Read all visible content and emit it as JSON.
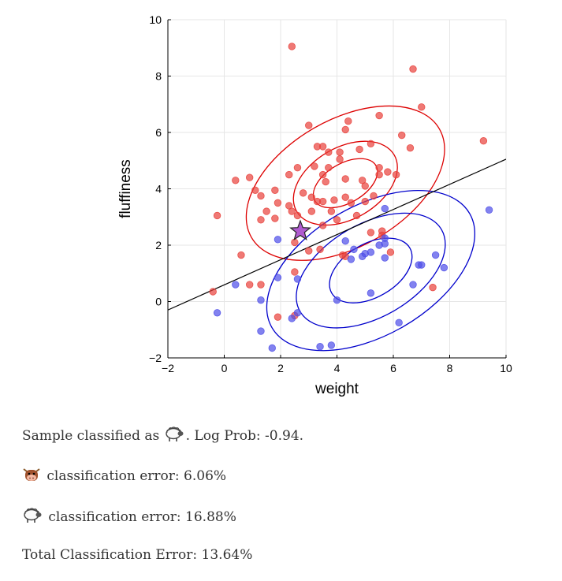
{
  "chart_data": {
    "type": "scatter",
    "title": "",
    "xlabel": "weight",
    "ylabel": "fluffiness",
    "xlim": [
      -2,
      10
    ],
    "ylim": [
      -2,
      10
    ],
    "xticks": [
      -2,
      0,
      2,
      4,
      6,
      8,
      10
    ],
    "yticks": [
      -2,
      0,
      2,
      4,
      6,
      8,
      10
    ],
    "grid": true,
    "colors": {
      "cow": "#e8403a",
      "sheep": "#4d4de8",
      "cow_ellipse": "#dd0000",
      "sheep_ellipse": "#0000cc",
      "boundary": "#000000",
      "sample": "#b05bd0"
    },
    "series": [
      {
        "class": "cow",
        "points": [
          [
            2.4,
            9.05
          ],
          [
            6.7,
            8.25
          ],
          [
            7.0,
            6.9
          ],
          [
            5.5,
            6.6
          ],
          [
            4.4,
            6.4
          ],
          [
            3.0,
            6.25
          ],
          [
            4.3,
            6.1
          ],
          [
            6.3,
            5.9
          ],
          [
            9.2,
            5.7
          ],
          [
            5.2,
            5.6
          ],
          [
            3.3,
            5.5
          ],
          [
            3.5,
            5.5
          ],
          [
            6.6,
            5.45
          ],
          [
            3.7,
            5.3
          ],
          [
            4.8,
            5.4
          ],
          [
            4.1,
            5.3
          ],
          [
            0.4,
            4.3
          ],
          [
            4.1,
            5.05
          ],
          [
            2.6,
            4.75
          ],
          [
            3.2,
            4.8
          ],
          [
            3.7,
            4.75
          ],
          [
            5.5,
            4.75
          ],
          [
            5.8,
            4.6
          ],
          [
            2.3,
            4.5
          ],
          [
            3.5,
            4.5
          ],
          [
            5.5,
            4.5
          ],
          [
            6.1,
            4.5
          ],
          [
            0.9,
            4.4
          ],
          [
            4.3,
            4.35
          ],
          [
            3.6,
            4.25
          ],
          [
            4.9,
            4.3
          ],
          [
            5.0,
            4.1
          ],
          [
            1.8,
            3.95
          ],
          [
            1.1,
            3.95
          ],
          [
            1.3,
            3.75
          ],
          [
            2.8,
            3.85
          ],
          [
            3.1,
            3.7
          ],
          [
            5.3,
            3.75
          ],
          [
            4.3,
            3.7
          ],
          [
            3.3,
            3.55
          ],
          [
            3.5,
            3.55
          ],
          [
            1.9,
            3.5
          ],
          [
            2.3,
            3.4
          ],
          [
            3.9,
            3.6
          ],
          [
            5.0,
            3.55
          ],
          [
            4.5,
            3.5
          ],
          [
            1.5,
            3.2
          ],
          [
            2.4,
            3.2
          ],
          [
            3.1,
            3.2
          ],
          [
            3.8,
            3.2
          ],
          [
            2.6,
            3.05
          ],
          [
            4.7,
            3.05
          ],
          [
            -0.25,
            3.05
          ],
          [
            1.3,
            2.9
          ],
          [
            1.8,
            2.95
          ],
          [
            4.0,
            2.9
          ],
          [
            3.5,
            2.7
          ],
          [
            5.6,
            2.5
          ],
          [
            5.6,
            2.35
          ],
          [
            5.2,
            2.45
          ],
          [
            2.5,
            2.1
          ],
          [
            3.0,
            1.8
          ],
          [
            3.4,
            1.85
          ],
          [
            0.6,
            1.65
          ],
          [
            4.2,
            1.65
          ],
          [
            4.3,
            1.6
          ],
          [
            5.9,
            1.75
          ],
          [
            2.5,
            1.05
          ],
          [
            1.3,
            0.6
          ],
          [
            0.9,
            0.6
          ],
          [
            7.4,
            0.5
          ],
          [
            -0.4,
            0.35
          ],
          [
            1.9,
            -0.55
          ],
          [
            2.5,
            -0.5
          ]
        ]
      },
      {
        "class": "sheep",
        "points": [
          [
            9.4,
            3.25
          ],
          [
            5.7,
            3.3
          ],
          [
            1.9,
            2.2
          ],
          [
            4.3,
            2.15
          ],
          [
            5.7,
            2.25
          ],
          [
            5.5,
            2.0
          ],
          [
            5.7,
            2.05
          ],
          [
            4.6,
            1.85
          ],
          [
            5.2,
            1.75
          ],
          [
            5.0,
            1.7
          ],
          [
            4.9,
            1.6
          ],
          [
            7.5,
            1.65
          ],
          [
            4.5,
            1.5
          ],
          [
            5.7,
            1.55
          ],
          [
            6.9,
            1.3
          ],
          [
            7.0,
            1.3
          ],
          [
            7.8,
            1.2
          ],
          [
            1.9,
            0.85
          ],
          [
            2.6,
            0.8
          ],
          [
            0.4,
            0.6
          ],
          [
            6.7,
            0.6
          ],
          [
            5.2,
            0.3
          ],
          [
            1.3,
            0.05
          ],
          [
            4.0,
            0.05
          ],
          [
            -0.25,
            -0.4
          ],
          [
            2.6,
            -0.4
          ],
          [
            2.4,
            -0.6
          ],
          [
            6.2,
            -0.75
          ],
          [
            1.3,
            -1.05
          ],
          [
            1.7,
            -1.65
          ],
          [
            3.4,
            -1.6
          ],
          [
            3.8,
            -1.55
          ]
        ]
      }
    ],
    "ellipses": [
      {
        "class": "cow",
        "center": [
          4.3,
          4.2
        ],
        "rx": [
          1.25,
          2.0,
          3.85
        ],
        "ry": [
          0.7,
          1.27,
          2.25
        ],
        "angle_deg": 30
      },
      {
        "class": "sheep",
        "center": [
          5.2,
          1.1
        ],
        "rx": [
          1.6,
          2.9,
          4.05
        ],
        "ry": [
          0.95,
          1.65,
          2.3
        ],
        "angle_deg": 30
      }
    ],
    "decision_boundary": {
      "from": [
        -2,
        -0.3
      ],
      "to": [
        10,
        5.05
      ]
    },
    "sample": {
      "x": 2.7,
      "y": 2.5
    }
  },
  "results": {
    "classified_prefix": "Sample classified as",
    "classified_suffix": ". Log Prob: -0.94.",
    "cow_error": "classification error: 6.06%",
    "sheep_error": "classification error: 16.88%",
    "total_error": "Total Classification Error: 13.64%"
  },
  "icons": {
    "cow": "cow-face-icon",
    "sheep": "sheep-icon"
  }
}
